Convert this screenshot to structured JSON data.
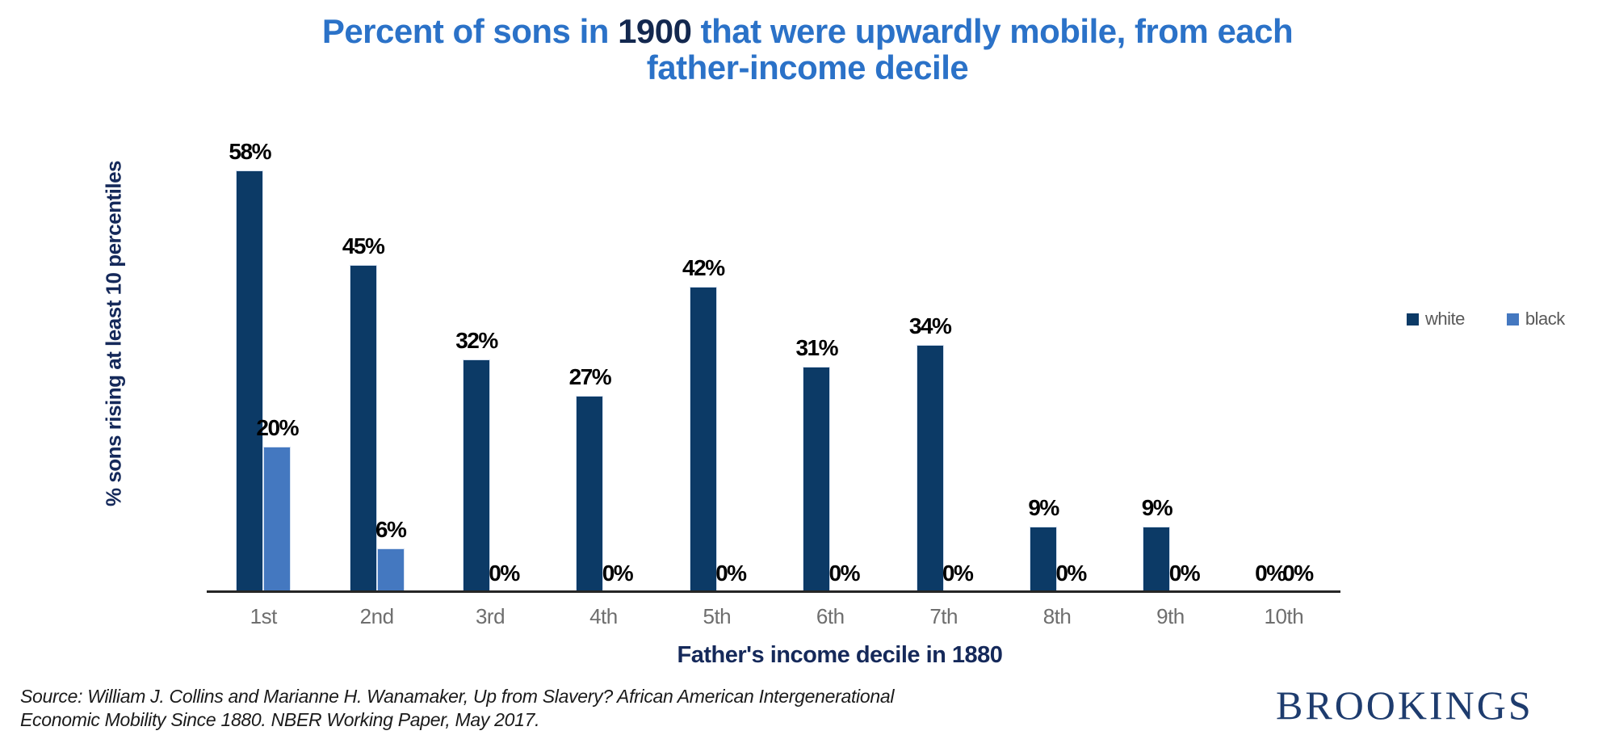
{
  "title": {
    "prefix": "Percent of sons in ",
    "year": "1900",
    "suffix": " that were upwardly mobile, from each",
    "line2": "father-income decile"
  },
  "chart_data": {
    "type": "bar",
    "categories": [
      "1st",
      "2nd",
      "3rd",
      "4th",
      "5th",
      "6th",
      "7th",
      "8th",
      "9th",
      "10th"
    ],
    "series": [
      {
        "name": "white",
        "color": "#0c3a66",
        "values": [
          58,
          45,
          32,
          27,
          42,
          31,
          34,
          9,
          9,
          0
        ]
      },
      {
        "name": "black",
        "color": "#4478c0",
        "values": [
          20,
          6,
          0,
          0,
          0,
          0,
          0,
          0,
          0,
          0
        ]
      }
    ],
    "value_label_format": "{v}%",
    "xlabel": "Father's income decile in 1880",
    "ylabel": "% sons rising at least 10 percentiles",
    "ylim": [
      0,
      60
    ],
    "grid": false,
    "legend_position": "right",
    "colors": {
      "title_blue": "#2b72c8",
      "navy_text": "#15295a",
      "tick_gray": "#6e6e6e",
      "axis_line": "#262626"
    }
  },
  "source": {
    "line1": "Source: William J. Collins and Marianne H. Wanamaker, Up from Slavery? African American Intergenerational",
    "line2": "Economic Mobility Since 1880. NBER Working Paper, May 2017."
  },
  "logo": {
    "text": "BROOKINGS"
  }
}
